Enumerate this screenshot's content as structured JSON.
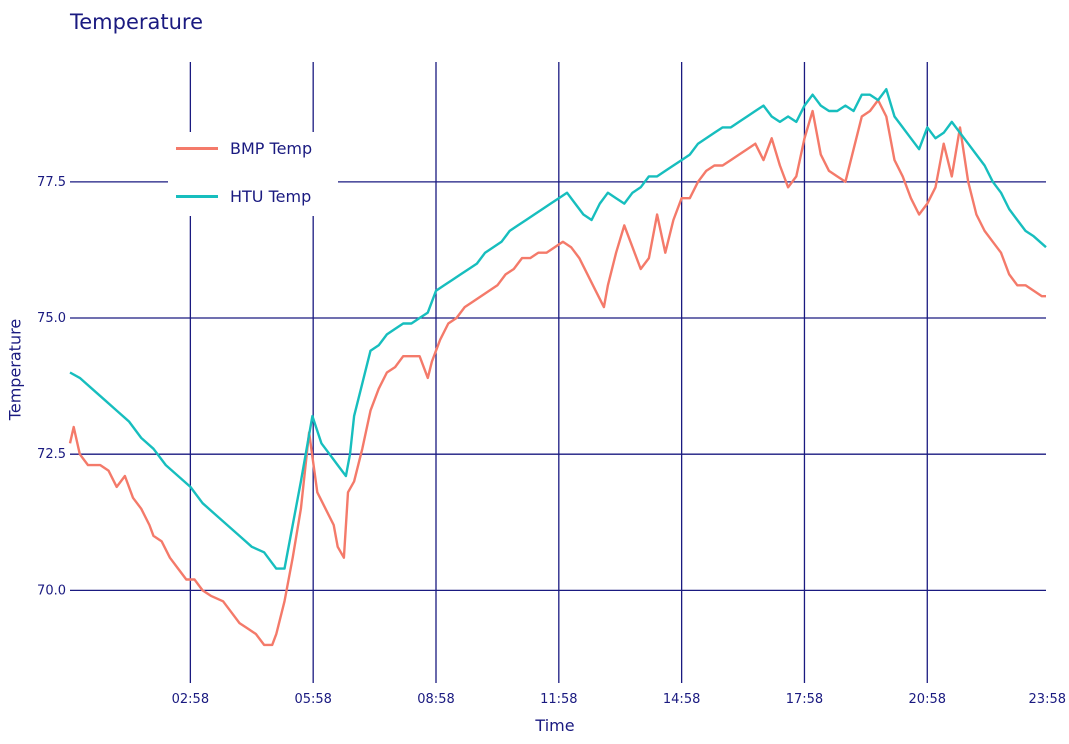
{
  "title": "Temperature",
  "chart_data": {
    "type": "line",
    "title": "Temperature",
    "xlabel": "Time",
    "ylabel": "Temperature",
    "x_ticks": [
      "02:58",
      "05:58",
      "08:58",
      "11:58",
      "14:58",
      "17:58",
      "20:58",
      "23:58"
    ],
    "x_tick_hours": [
      3,
      6,
      9,
      12,
      15,
      18,
      21,
      24
    ],
    "xlim_hours": [
      0.06,
      23.9
    ],
    "y_ticks": [
      70.0,
      72.5,
      75.0,
      77.5
    ],
    "y_tick_labels": [
      "70.0",
      "72.5",
      "75.0",
      "77.5"
    ],
    "ylim": [
      68.3,
      79.7
    ],
    "grid": true,
    "legend_position": "top-left",
    "series": [
      {
        "name": "BMP Temp",
        "color": "#f47a6a",
        "points": [
          [
            0.06,
            72.7
          ],
          [
            0.15,
            73.0
          ],
          [
            0.3,
            72.5
          ],
          [
            0.5,
            72.3
          ],
          [
            0.8,
            72.3
          ],
          [
            1.0,
            72.2
          ],
          [
            1.2,
            71.9
          ],
          [
            1.4,
            72.1
          ],
          [
            1.6,
            71.7
          ],
          [
            1.8,
            71.5
          ],
          [
            2.0,
            71.2
          ],
          [
            2.1,
            71.0
          ],
          [
            2.3,
            70.9
          ],
          [
            2.5,
            70.6
          ],
          [
            2.7,
            70.4
          ],
          [
            2.9,
            70.2
          ],
          [
            3.1,
            70.2
          ],
          [
            3.3,
            70.0
          ],
          [
            3.5,
            69.9
          ],
          [
            3.8,
            69.8
          ],
          [
            4.0,
            69.6
          ],
          [
            4.2,
            69.4
          ],
          [
            4.4,
            69.3
          ],
          [
            4.6,
            69.2
          ],
          [
            4.8,
            69.0
          ],
          [
            5.0,
            69.0
          ],
          [
            5.1,
            69.2
          ],
          [
            5.3,
            69.8
          ],
          [
            5.5,
            70.6
          ],
          [
            5.7,
            71.5
          ],
          [
            5.9,
            72.9
          ],
          [
            6.1,
            71.8
          ],
          [
            6.3,
            71.5
          ],
          [
            6.5,
            71.2
          ],
          [
            6.6,
            70.8
          ],
          [
            6.75,
            70.6
          ],
          [
            6.85,
            71.8
          ],
          [
            7.0,
            72.0
          ],
          [
            7.2,
            72.6
          ],
          [
            7.4,
            73.3
          ],
          [
            7.6,
            73.7
          ],
          [
            7.8,
            74.0
          ],
          [
            8.0,
            74.1
          ],
          [
            8.2,
            74.3
          ],
          [
            8.4,
            74.3
          ],
          [
            8.6,
            74.3
          ],
          [
            8.8,
            73.9
          ],
          [
            8.9,
            74.2
          ],
          [
            9.1,
            74.6
          ],
          [
            9.3,
            74.9
          ],
          [
            9.5,
            75.0
          ],
          [
            9.7,
            75.2
          ],
          [
            9.9,
            75.3
          ],
          [
            10.1,
            75.4
          ],
          [
            10.3,
            75.5
          ],
          [
            10.5,
            75.6
          ],
          [
            10.7,
            75.8
          ],
          [
            10.9,
            75.9
          ],
          [
            11.1,
            76.1
          ],
          [
            11.3,
            76.1
          ],
          [
            11.5,
            76.2
          ],
          [
            11.7,
            76.2
          ],
          [
            11.9,
            76.3
          ],
          [
            12.1,
            76.4
          ],
          [
            12.3,
            76.3
          ],
          [
            12.5,
            76.1
          ],
          [
            12.7,
            75.8
          ],
          [
            12.9,
            75.5
          ],
          [
            13.1,
            75.2
          ],
          [
            13.2,
            75.6
          ],
          [
            13.4,
            76.2
          ],
          [
            13.6,
            76.7
          ],
          [
            13.8,
            76.3
          ],
          [
            14.0,
            75.9
          ],
          [
            14.2,
            76.1
          ],
          [
            14.4,
            76.9
          ],
          [
            14.6,
            76.2
          ],
          [
            14.8,
            76.8
          ],
          [
            15.0,
            77.2
          ],
          [
            15.2,
            77.2
          ],
          [
            15.4,
            77.5
          ],
          [
            15.6,
            77.7
          ],
          [
            15.8,
            77.8
          ],
          [
            16.0,
            77.8
          ],
          [
            16.2,
            77.9
          ],
          [
            16.4,
            78.0
          ],
          [
            16.6,
            78.1
          ],
          [
            16.8,
            78.2
          ],
          [
            17.0,
            77.9
          ],
          [
            17.2,
            78.3
          ],
          [
            17.4,
            77.8
          ],
          [
            17.6,
            77.4
          ],
          [
            17.8,
            77.6
          ],
          [
            18.0,
            78.3
          ],
          [
            18.2,
            78.8
          ],
          [
            18.4,
            78.0
          ],
          [
            18.6,
            77.7
          ],
          [
            18.8,
            77.6
          ],
          [
            19.0,
            77.5
          ],
          [
            19.2,
            78.1
          ],
          [
            19.4,
            78.7
          ],
          [
            19.6,
            78.8
          ],
          [
            19.8,
            79.0
          ],
          [
            20.0,
            78.7
          ],
          [
            20.2,
            77.9
          ],
          [
            20.4,
            77.6
          ],
          [
            20.6,
            77.2
          ],
          [
            20.8,
            76.9
          ],
          [
            21.0,
            77.1
          ],
          [
            21.2,
            77.4
          ],
          [
            21.4,
            78.2
          ],
          [
            21.6,
            77.6
          ],
          [
            21.8,
            78.5
          ],
          [
            22.0,
            77.5
          ],
          [
            22.2,
            76.9
          ],
          [
            22.4,
            76.6
          ],
          [
            22.6,
            76.4
          ],
          [
            22.8,
            76.2
          ],
          [
            23.0,
            75.8
          ],
          [
            23.2,
            75.6
          ],
          [
            23.4,
            75.6
          ],
          [
            23.6,
            75.5
          ],
          [
            23.8,
            75.4
          ],
          [
            23.9,
            75.4
          ]
        ]
      },
      {
        "name": "HTU Temp",
        "color": "#17bebe",
        "points": [
          [
            0.06,
            74.0
          ],
          [
            0.3,
            73.9
          ],
          [
            0.6,
            73.7
          ],
          [
            0.9,
            73.5
          ],
          [
            1.2,
            73.3
          ],
          [
            1.5,
            73.1
          ],
          [
            1.8,
            72.8
          ],
          [
            2.1,
            72.6
          ],
          [
            2.4,
            72.3
          ],
          [
            2.7,
            72.1
          ],
          [
            3.0,
            71.9
          ],
          [
            3.3,
            71.6
          ],
          [
            3.6,
            71.4
          ],
          [
            3.9,
            71.2
          ],
          [
            4.2,
            71.0
          ],
          [
            4.5,
            70.8
          ],
          [
            4.8,
            70.7
          ],
          [
            5.0,
            70.5
          ],
          [
            5.1,
            70.4
          ],
          [
            5.3,
            70.4
          ],
          [
            5.5,
            71.2
          ],
          [
            5.7,
            72.0
          ],
          [
            5.98,
            73.2
          ],
          [
            6.2,
            72.7
          ],
          [
            6.4,
            72.5
          ],
          [
            6.6,
            72.3
          ],
          [
            6.8,
            72.1
          ],
          [
            6.9,
            72.5
          ],
          [
            7.0,
            73.2
          ],
          [
            7.2,
            73.8
          ],
          [
            7.4,
            74.4
          ],
          [
            7.6,
            74.5
          ],
          [
            7.8,
            74.7
          ],
          [
            8.0,
            74.8
          ],
          [
            8.2,
            74.9
          ],
          [
            8.4,
            74.9
          ],
          [
            8.6,
            75.0
          ],
          [
            8.8,
            75.1
          ],
          [
            9.0,
            75.5
          ],
          [
            9.2,
            75.6
          ],
          [
            9.4,
            75.7
          ],
          [
            9.6,
            75.8
          ],
          [
            9.8,
            75.9
          ],
          [
            10.0,
            76.0
          ],
          [
            10.2,
            76.2
          ],
          [
            10.4,
            76.3
          ],
          [
            10.6,
            76.4
          ],
          [
            10.8,
            76.6
          ],
          [
            11.0,
            76.7
          ],
          [
            11.2,
            76.8
          ],
          [
            11.4,
            76.9
          ],
          [
            11.6,
            77.0
          ],
          [
            11.8,
            77.1
          ],
          [
            12.0,
            77.2
          ],
          [
            12.2,
            77.3
          ],
          [
            12.4,
            77.1
          ],
          [
            12.6,
            76.9
          ],
          [
            12.8,
            76.8
          ],
          [
            13.0,
            77.1
          ],
          [
            13.2,
            77.3
          ],
          [
            13.4,
            77.2
          ],
          [
            13.6,
            77.1
          ],
          [
            13.8,
            77.3
          ],
          [
            14.0,
            77.4
          ],
          [
            14.2,
            77.6
          ],
          [
            14.4,
            77.6
          ],
          [
            14.6,
            77.7
          ],
          [
            14.8,
            77.8
          ],
          [
            15.0,
            77.9
          ],
          [
            15.2,
            78.0
          ],
          [
            15.4,
            78.2
          ],
          [
            15.6,
            78.3
          ],
          [
            15.8,
            78.4
          ],
          [
            16.0,
            78.5
          ],
          [
            16.2,
            78.5
          ],
          [
            16.4,
            78.6
          ],
          [
            16.6,
            78.7
          ],
          [
            16.8,
            78.8
          ],
          [
            17.0,
            78.9
          ],
          [
            17.2,
            78.7
          ],
          [
            17.4,
            78.6
          ],
          [
            17.6,
            78.7
          ],
          [
            17.8,
            78.6
          ],
          [
            18.0,
            78.9
          ],
          [
            18.2,
            79.1
          ],
          [
            18.4,
            78.9
          ],
          [
            18.6,
            78.8
          ],
          [
            18.8,
            78.8
          ],
          [
            19.0,
            78.9
          ],
          [
            19.2,
            78.8
          ],
          [
            19.4,
            79.1
          ],
          [
            19.6,
            79.1
          ],
          [
            19.8,
            79.0
          ],
          [
            20.0,
            79.2
          ],
          [
            20.2,
            78.7
          ],
          [
            20.4,
            78.5
          ],
          [
            20.6,
            78.3
          ],
          [
            20.8,
            78.1
          ],
          [
            21.0,
            78.5
          ],
          [
            21.2,
            78.3
          ],
          [
            21.4,
            78.4
          ],
          [
            21.6,
            78.6
          ],
          [
            21.8,
            78.4
          ],
          [
            22.0,
            78.2
          ],
          [
            22.2,
            78.0
          ],
          [
            22.4,
            77.8
          ],
          [
            22.6,
            77.5
          ],
          [
            22.8,
            77.3
          ],
          [
            23.0,
            77.0
          ],
          [
            23.2,
            76.8
          ],
          [
            23.4,
            76.6
          ],
          [
            23.6,
            76.5
          ],
          [
            23.9,
            76.3
          ]
        ]
      }
    ]
  }
}
